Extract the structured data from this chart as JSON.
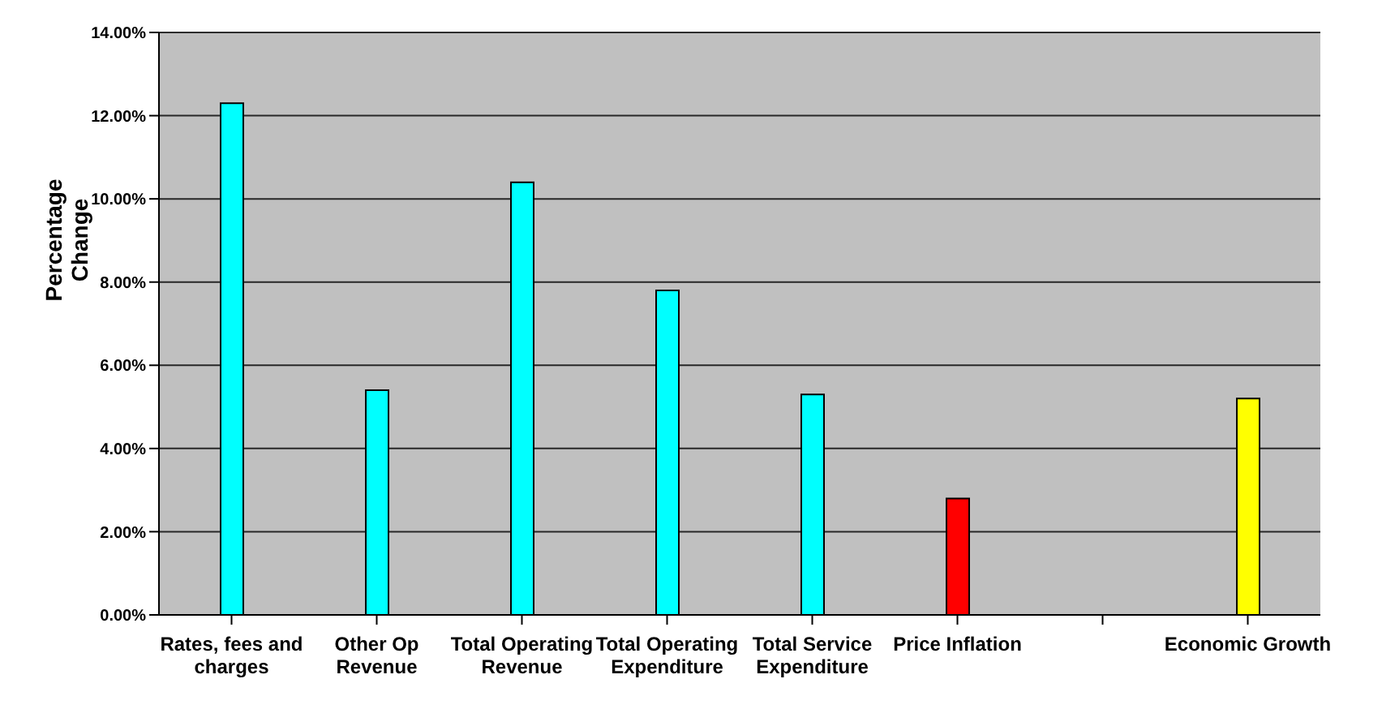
{
  "chart_data": {
    "type": "bar",
    "ylabel": "Percentage Change",
    "categories": [
      "Rates, fees and charges",
      "Other Op Revenue",
      "Total Operating Revenue",
      "Total Operating Expenditure",
      "Total Service Expenditure",
      "Price Inflation",
      null,
      "Economic Growth"
    ],
    "values": [
      12.3,
      5.4,
      10.4,
      7.8,
      5.3,
      2.8,
      null,
      5.2
    ],
    "colors": [
      "#00ffff",
      "#00ffff",
      "#00ffff",
      "#00ffff",
      "#00ffff",
      "#ff0000",
      "#00ffff",
      "#ffff00"
    ],
    "ylim": [
      0,
      14
    ],
    "yticks": [
      {
        "value": 0,
        "label": "0.00%"
      },
      {
        "value": 2,
        "label": "2.00%"
      },
      {
        "value": 4,
        "label": "4.00%"
      },
      {
        "value": 6,
        "label": "6.00%"
      },
      {
        "value": 8,
        "label": "8.00%"
      },
      {
        "value": 10,
        "label": "10.00%"
      },
      {
        "value": 12,
        "label": "12.00%"
      },
      {
        "value": 14,
        "label": "14.00%"
      }
    ],
    "grid": "y",
    "legend": false
  }
}
